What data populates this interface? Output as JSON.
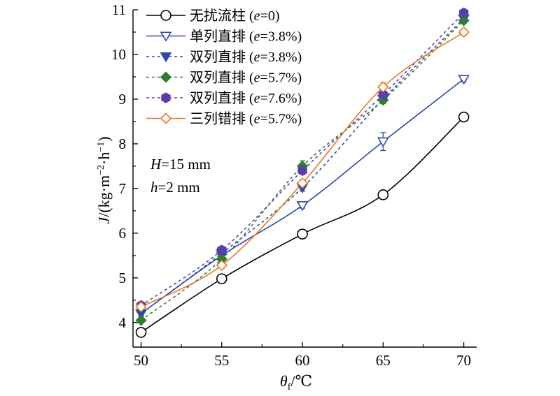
{
  "chart_data": {
    "type": "line",
    "x": [
      50,
      55,
      60,
      65,
      70
    ],
    "xlim": [
      49.5,
      70.8
    ],
    "ylim": [
      3.45,
      11
    ],
    "xticks": [
      50,
      55,
      60,
      65,
      70
    ],
    "yticks": [
      4,
      5,
      6,
      7,
      8,
      9,
      10,
      11
    ],
    "xlabel": {
      "symbol": "θ",
      "sub": "f",
      "unit": "/℃"
    },
    "ylabel": {
      "symbol": "J",
      "unit": "/(kg·m",
      "exp1": "−2",
      "mid": "·h",
      "exp2": "−1",
      "close": ")"
    },
    "annotations": [
      {
        "symbol": "H",
        "text": "=15 mm"
      },
      {
        "symbol": "h",
        "text": "=2 mm"
      }
    ],
    "legend_position": "top-left",
    "grid": false,
    "series": [
      {
        "name": "无扰流柱",
        "param": "e",
        "param_value": "=0",
        "color": "#000000",
        "marker": "circle-open",
        "line": "solid",
        "values": [
          3.78,
          4.98,
          5.98,
          6.86,
          8.6
        ],
        "errors": [
          0.07,
          0.07,
          0.06,
          0.09,
          0.09
        ]
      },
      {
        "name": "单列直排",
        "param": "e",
        "param_value": "=3.8%",
        "color": "#2a4aa8",
        "marker": "triangle-down-open",
        "line": "solid",
        "values": [
          4.2,
          5.5,
          6.62,
          8.05,
          9.45
        ],
        "errors": [
          0.06,
          0.06,
          0.06,
          0.2,
          0.06
        ]
      },
      {
        "name": "双列直排",
        "param": "e",
        "param_value": "=3.8%",
        "color": "#2a4aa8",
        "marker": "triangle-down-filled",
        "line": "dashed",
        "values": [
          4.2,
          5.55,
          7.02,
          9.0,
          10.8
        ],
        "errors": [
          0.05,
          0.05,
          0.08,
          0.1,
          0.05
        ]
      },
      {
        "name": "双列直排",
        "param": "e",
        "param_value": "=5.7%",
        "color": "#2e7d32",
        "marker": "diamond-filled",
        "line": "dashed",
        "values": [
          4.05,
          5.42,
          7.5,
          8.98,
          10.76
        ],
        "errors": [
          0.05,
          0.05,
          0.12,
          0.08,
          0.06
        ]
      },
      {
        "name": "双列直排",
        "param": "e",
        "param_value": "=7.6%",
        "color": "#5b3db0",
        "marker": "hexagon-filled",
        "line": "dashed",
        "values": [
          4.38,
          5.62,
          7.4,
          9.1,
          10.93
        ],
        "errors": [
          0.05,
          0.05,
          0.08,
          0.08,
          0.05
        ]
      },
      {
        "name": "三列错排",
        "param": "e",
        "param_value": "=5.7%",
        "color": "#e87722",
        "marker": "diamond-open",
        "line": "solid",
        "values": [
          4.35,
          5.28,
          7.12,
          9.27,
          10.5
        ],
        "errors": [
          0.06,
          0.06,
          0.08,
          0.1,
          0.07
        ]
      }
    ]
  }
}
